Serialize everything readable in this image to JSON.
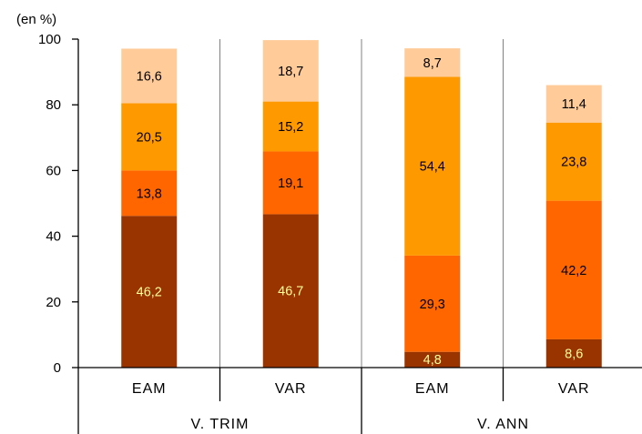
{
  "chart_data": {
    "type": "bar",
    "stacked": true,
    "unit_label": "(en %)",
    "ylim": [
      0,
      100
    ],
    "yticks": [
      0,
      20,
      40,
      60,
      80,
      100
    ],
    "categories": [
      "EAM",
      "VAR",
      "EAM",
      "VAR"
    ],
    "groups": [
      {
        "label": "V. TRIM",
        "span": [
          0,
          1
        ]
      },
      {
        "label": "V. ANN",
        "span": [
          2,
          3
        ]
      }
    ],
    "series": [
      {
        "values": [
          46.2,
          46.7,
          4.8,
          8.6
        ],
        "labels": [
          "46,2",
          "46,7",
          "4,8",
          "8,6"
        ],
        "color": "#993300",
        "label_color": "#ffff99"
      },
      {
        "values": [
          13.8,
          19.1,
          29.3,
          42.2
        ],
        "labels": [
          "13,8",
          "19,1",
          "29,3",
          "42,2"
        ],
        "color": "#ff6600",
        "label_color": "#000000"
      },
      {
        "values": [
          20.5,
          15.2,
          54.4,
          23.8
        ],
        "labels": [
          "20,5",
          "15,2",
          "54,4",
          "23,8"
        ],
        "color": "#ff9900",
        "label_color": "#000000"
      },
      {
        "values": [
          16.6,
          18.7,
          8.7,
          11.4
        ],
        "labels": [
          "16,6",
          "18,7",
          "8,7",
          "11,4"
        ],
        "color": "#ffcc99",
        "label_color": "#000000"
      }
    ],
    "grid": {
      "horizontal": false,
      "vertical": true
    },
    "legend": "none"
  }
}
